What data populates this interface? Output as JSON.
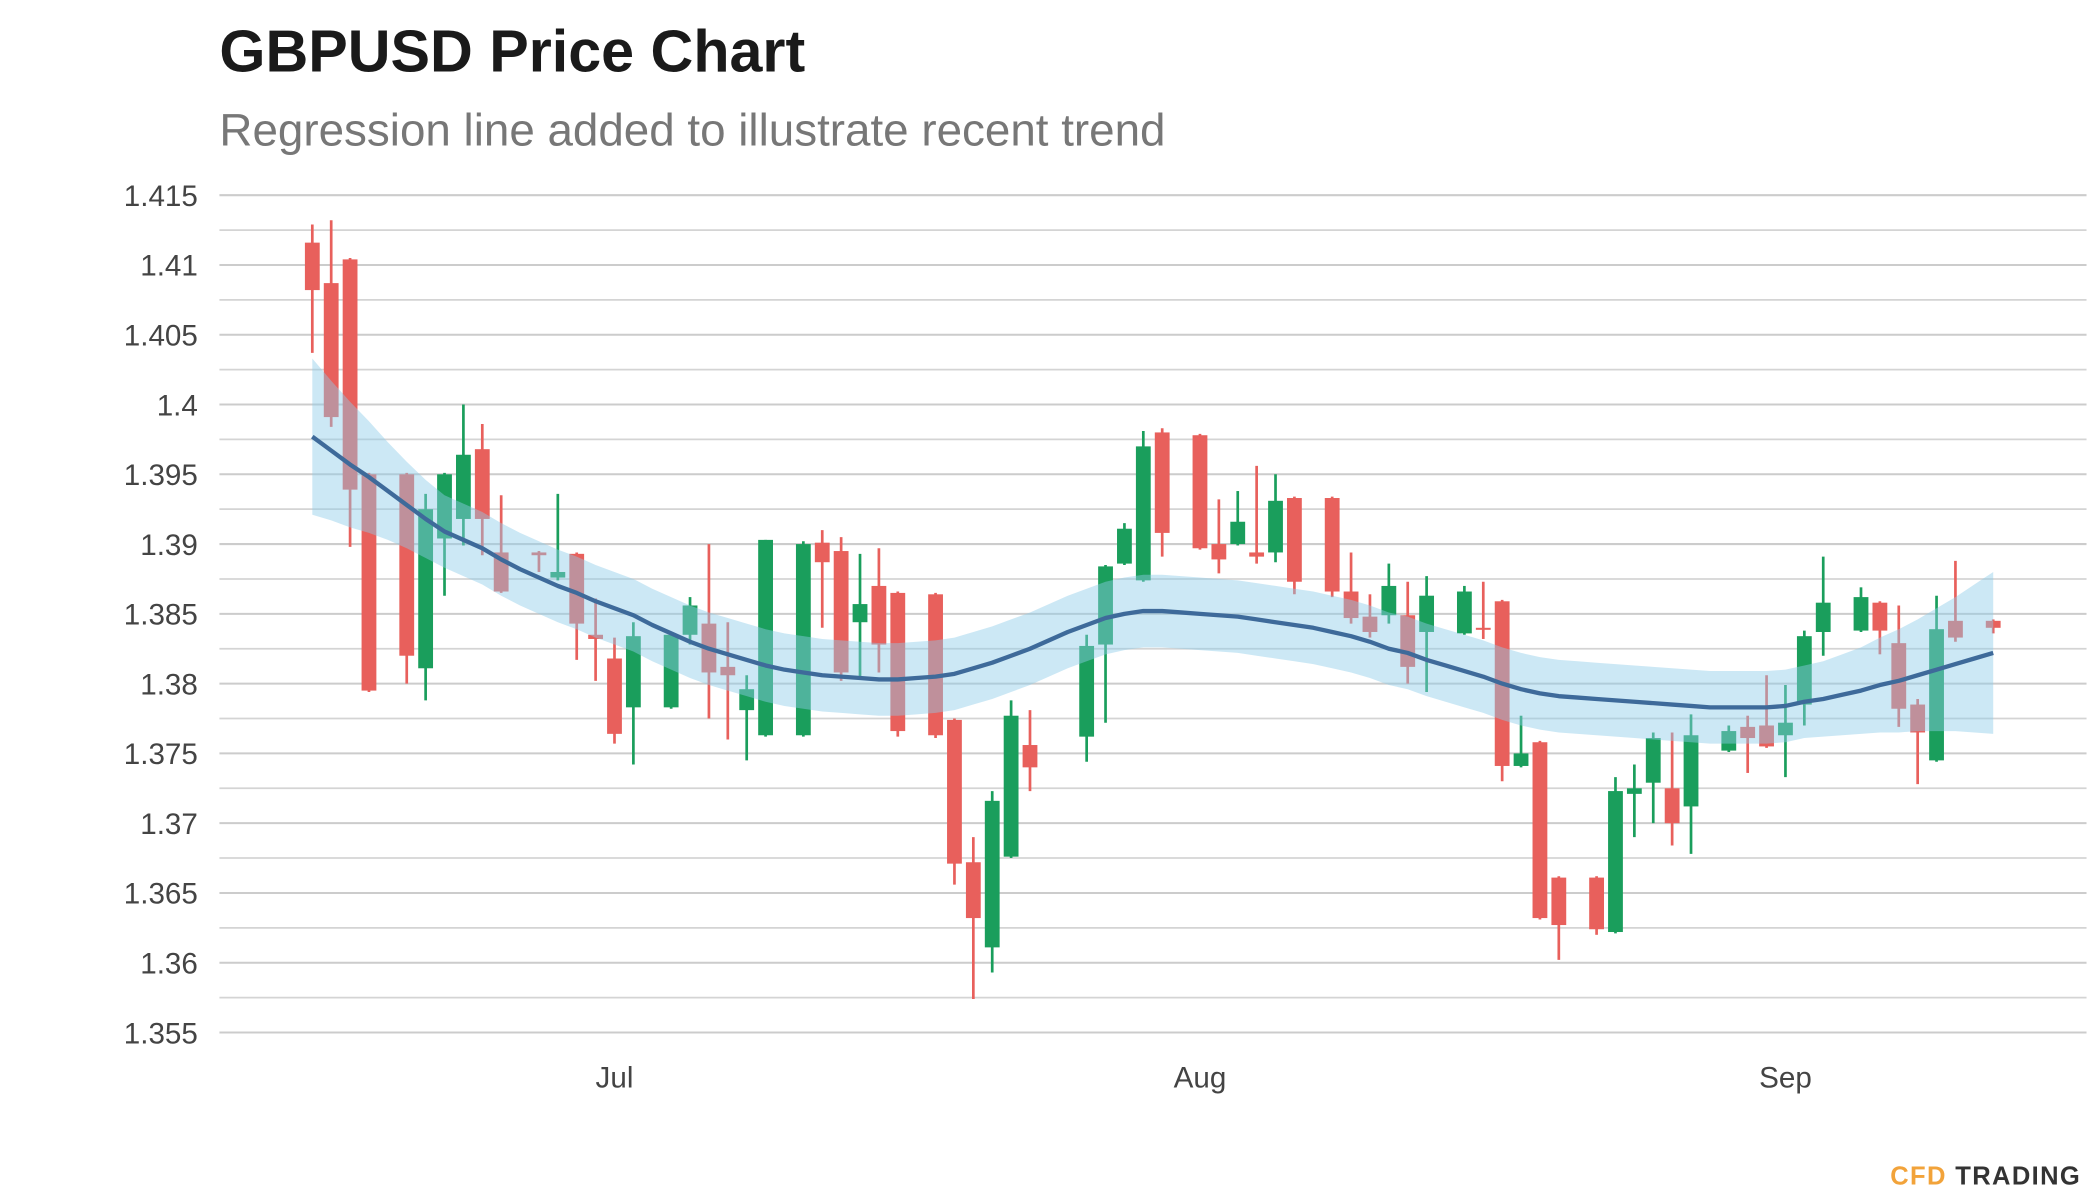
{
  "chart_data": {
    "type": "candlestick",
    "title": "GBPUSD Price Chart",
    "subtitle": "Regression line added to illustrate recent trend",
    "categories": [
      null,
      null,
      null,
      null,
      null,
      null,
      null,
      null,
      null,
      null,
      null,
      null,
      null,
      null,
      null,
      null,
      "Jul",
      null,
      null,
      null,
      null,
      null,
      null,
      null,
      null,
      null,
      null,
      null,
      null,
      null,
      null,
      null,
      null,
      null,
      null,
      null,
      null,
      null,
      null,
      null,
      null,
      null,
      null,
      null,
      null,
      null,
      null,
      "Aug",
      null,
      null,
      null,
      null,
      null,
      null,
      null,
      null,
      null,
      null,
      null,
      null,
      null,
      null,
      null,
      null,
      null,
      null,
      null,
      null,
      null,
      null,
      null,
      null,
      null,
      null,
      null,
      null,
      null,
      null,
      "Sep",
      null,
      null,
      null,
      null,
      null,
      null,
      null,
      null,
      null,
      null,
      null
    ],
    "open": [
      1.4116,
      1.4087,
      1.4104,
      1.395,
      null,
      1.395,
      1.3811,
      1.3904,
      1.3918,
      1.3968,
      1.3894,
      null,
      1.3894,
      1.3876,
      1.3893,
      1.3835,
      1.3818,
      1.3783,
      null,
      1.3783,
      1.3835,
      1.3843,
      1.3812,
      1.3781,
      1.3763,
      null,
      1.3763,
      1.3901,
      1.3895,
      1.3844,
      1.387,
      1.3865,
      null,
      1.3864,
      1.3774,
      1.3672,
      1.3611,
      1.3676,
      1.3756,
      null,
      null,
      1.3762,
      1.3828,
      1.3886,
      1.3874,
      1.398,
      null,
      1.3978,
      1.39,
      1.39,
      1.3894,
      1.3894,
      1.3933,
      null,
      1.3933,
      1.3866,
      1.3848,
      1.3849,
      1.3849,
      1.3837,
      null,
      1.3836,
      1.384,
      1.3859,
      1.3741,
      1.3758,
      1.3661,
      null,
      1.3661,
      1.3622,
      1.3721,
      1.3729,
      1.3725,
      1.3712,
      null,
      1.3752,
      1.3769,
      1.377,
      1.3763,
      1.3785,
      1.3837,
      null,
      1.3838,
      1.3858,
      1.3829,
      1.3785,
      1.3745,
      1.3845,
      null,
      1.3845
    ],
    "high": [
      1.4129,
      1.4132,
      1.4105,
      1.3951,
      null,
      1.3951,
      1.3936,
      1.3951,
      1.4,
      1.3986,
      1.3935,
      null,
      1.3895,
      1.3936,
      1.3894,
      1.3861,
      1.3833,
      1.3844,
      null,
      1.3836,
      1.3862,
      1.39,
      1.3844,
      1.3806,
      1.3903,
      null,
      1.3902,
      1.391,
      1.3905,
      1.3893,
      1.3897,
      1.3866,
      null,
      1.3865,
      1.3775,
      1.369,
      1.3723,
      1.3788,
      1.3781,
      null,
      null,
      1.3835,
      1.3885,
      1.3915,
      1.3981,
      1.3983,
      null,
      1.3979,
      1.3932,
      1.3938,
      1.3956,
      1.395,
      1.3934,
      null,
      1.3934,
      1.3894,
      1.3864,
      1.3886,
      1.3873,
      1.3877,
      null,
      1.387,
      1.3873,
      1.386,
      1.3777,
      1.3759,
      1.3662,
      null,
      1.3662,
      1.3733,
      1.3742,
      1.3765,
      1.3765,
      1.3778,
      null,
      1.377,
      1.3777,
      1.3806,
      1.3799,
      1.3838,
      1.3891,
      null,
      1.3869,
      1.3859,
      1.3856,
      1.3789,
      1.3863,
      1.3888,
      null,
      1.3846
    ],
    "low": [
      1.4037,
      1.3984,
      1.3898,
      1.3794,
      null,
      1.38,
      1.3788,
      1.3863,
      1.3899,
      1.3892,
      1.3865,
      null,
      1.388,
      1.3874,
      1.3817,
      1.3802,
      1.3757,
      1.3742,
      null,
      1.3782,
      1.3828,
      1.3775,
      1.376,
      1.3745,
      1.3762,
      null,
      1.3762,
      1.384,
      1.3802,
      1.3803,
      1.3808,
      1.3762,
      null,
      1.3761,
      1.3656,
      1.3574,
      1.3593,
      1.3675,
      1.3723,
      null,
      null,
      1.3744,
      1.3772,
      1.3885,
      1.3873,
      1.3891,
      null,
      1.3896,
      1.3879,
      1.3899,
      1.3886,
      1.3887,
      1.3864,
      null,
      1.3862,
      1.3843,
      1.3833,
      1.3843,
      1.38,
      1.3794,
      null,
      1.3835,
      1.3832,
      1.373,
      1.374,
      1.3631,
      1.3602,
      null,
      1.362,
      1.3621,
      1.369,
      1.37,
      1.3684,
      1.3678,
      null,
      1.3751,
      1.3736,
      1.3754,
      1.3733,
      1.377,
      1.382,
      null,
      1.3837,
      1.3821,
      1.3769,
      1.3728,
      1.3744,
      1.383,
      null,
      1.3836
    ],
    "close": [
      1.4082,
      1.3991,
      1.3939,
      1.3795,
      null,
      1.382,
      1.3925,
      1.395,
      1.3964,
      1.3918,
      1.3866,
      null,
      1.3892,
      1.388,
      1.3843,
      1.3832,
      1.3764,
      1.3834,
      null,
      1.3835,
      1.3856,
      1.3808,
      1.3806,
      1.3796,
      1.3903,
      null,
      1.39,
      1.3887,
      1.3808,
      1.3857,
      1.3828,
      1.3766,
      null,
      1.3763,
      1.3671,
      1.3632,
      1.3716,
      1.3777,
      1.374,
      null,
      null,
      1.3827,
      1.3884,
      1.3911,
      1.397,
      1.3908,
      null,
      1.3897,
      1.3889,
      1.3916,
      1.3891,
      1.3931,
      1.3873,
      null,
      1.3866,
      1.3847,
      1.3837,
      1.387,
      1.3812,
      1.3863,
      null,
      1.3866,
      1.3839,
      1.3741,
      1.375,
      1.3632,
      1.3627,
      null,
      1.3624,
      1.3723,
      1.3725,
      1.3761,
      1.37,
      1.3763,
      null,
      1.3766,
      1.3761,
      1.3755,
      1.3772,
      1.3834,
      1.3858,
      null,
      1.3862,
      1.3838,
      1.3782,
      1.3765,
      1.3839,
      1.3833,
      null,
      1.384
    ],
    "up_color": "#1a9e5c",
    "down_color": "#e8605c",
    "trend": {
      "color": "#3e6a9a",
      "band_color": "#8fcbe9",
      "values": [
        1.3977,
        1.3967,
        1.3957,
        1.3948,
        1.3938,
        1.3928,
        1.3918,
        1.3909,
        1.3903,
        1.3897,
        1.3889,
        1.3882,
        1.3876,
        1.387,
        1.3865,
        1.3859,
        1.3854,
        1.3849,
        1.3842,
        1.3836,
        1.383,
        1.3825,
        1.3821,
        1.3817,
        1.3813,
        1.381,
        1.3808,
        1.3806,
        1.3805,
        1.3804,
        1.3803,
        1.3803,
        1.3804,
        1.3805,
        1.3807,
        1.3811,
        1.3815,
        1.382,
        1.3825,
        1.3831,
        1.3837,
        1.3842,
        1.3847,
        1.385,
        1.3852,
        1.3852,
        1.3851,
        1.385,
        1.3849,
        1.3848,
        1.3846,
        1.3844,
        1.3842,
        1.384,
        1.3837,
        1.3834,
        1.383,
        1.3825,
        1.3822,
        1.3817,
        1.3813,
        1.3809,
        1.3805,
        1.38,
        1.3796,
        1.3793,
        1.3791,
        1.379,
        1.3789,
        1.3788,
        1.3787,
        1.3786,
        1.3785,
        1.3784,
        1.3783,
        1.3783,
        1.3783,
        1.3783,
        1.3784,
        1.3787,
        1.3789,
        1.3792,
        1.3795,
        1.3799,
        1.3802,
        1.3806,
        1.381,
        1.3814,
        1.3818,
        1.3822
      ],
      "upper": [
        1.4033,
        1.4017,
        1.4002,
        1.3988,
        1.3973,
        1.3959,
        1.3946,
        1.3935,
        1.3929,
        1.3923,
        1.3915,
        1.3908,
        1.3902,
        1.3896,
        1.3891,
        1.3885,
        1.388,
        1.3875,
        1.3868,
        1.3862,
        1.3856,
        1.3851,
        1.3847,
        1.3843,
        1.3839,
        1.3836,
        1.3834,
        1.3832,
        1.3831,
        1.383,
        1.3829,
        1.3829,
        1.383,
        1.3831,
        1.3833,
        1.3837,
        1.3841,
        1.3846,
        1.3851,
        1.3857,
        1.3863,
        1.3868,
        1.3873,
        1.3876,
        1.3878,
        1.3878,
        1.3877,
        1.3876,
        1.3875,
        1.3874,
        1.3872,
        1.387,
        1.3868,
        1.3866,
        1.3863,
        1.386,
        1.3856,
        1.3851,
        1.3848,
        1.3843,
        1.3839,
        1.3835,
        1.3831,
        1.3826,
        1.3822,
        1.3819,
        1.3817,
        1.3816,
        1.3815,
        1.3814,
        1.3813,
        1.3812,
        1.3811,
        1.381,
        1.3809,
        1.3809,
        1.3809,
        1.3809,
        1.381,
        1.3813,
        1.3816,
        1.3821,
        1.3826,
        1.3833,
        1.3839,
        1.3846,
        1.3854,
        1.3862,
        1.3871,
        1.388
      ],
      "lower": [
        1.3921,
        1.3917,
        1.3912,
        1.3908,
        1.3903,
        1.3897,
        1.389,
        1.3883,
        1.3877,
        1.3871,
        1.3863,
        1.3856,
        1.385,
        1.3844,
        1.3839,
        1.3833,
        1.3828,
        1.3823,
        1.3816,
        1.381,
        1.3804,
        1.3799,
        1.3795,
        1.3791,
        1.3787,
        1.3784,
        1.3782,
        1.378,
        1.3779,
        1.3778,
        1.3777,
        1.3777,
        1.3778,
        1.3779,
        1.3781,
        1.3785,
        1.3789,
        1.3794,
        1.3799,
        1.3805,
        1.3811,
        1.3816,
        1.3821,
        1.3824,
        1.3826,
        1.3826,
        1.3825,
        1.3824,
        1.3823,
        1.3822,
        1.382,
        1.3818,
        1.3816,
        1.3814,
        1.3811,
        1.3808,
        1.3804,
        1.3799,
        1.3796,
        1.3791,
        1.3787,
        1.3783,
        1.3779,
        1.3774,
        1.377,
        1.3767,
        1.3765,
        1.3764,
        1.3763,
        1.3762,
        1.3761,
        1.376,
        1.3759,
        1.3758,
        1.3757,
        1.3757,
        1.3757,
        1.3757,
        1.3758,
        1.3761,
        1.3762,
        1.3763,
        1.3764,
        1.3765,
        1.3765,
        1.3766,
        1.3766,
        1.3766,
        1.3765,
        1.3764
      ]
    },
    "ylim": [
      1.355,
      1.415
    ],
    "yticks": [
      1.355,
      1.36,
      1.365,
      1.37,
      1.375,
      1.38,
      1.385,
      1.39,
      1.395,
      1.4,
      1.405,
      1.41,
      1.415
    ],
    "minor_yticks": [
      1.3575,
      1.3625,
      1.3675,
      1.3725,
      1.3775,
      1.3825,
      1.3875,
      1.3925,
      1.3975,
      1.4025,
      1.4075,
      1.4125
    ],
    "grid": true
  },
  "logo": {
    "highlight": "CFD",
    "text": "TRADING"
  }
}
